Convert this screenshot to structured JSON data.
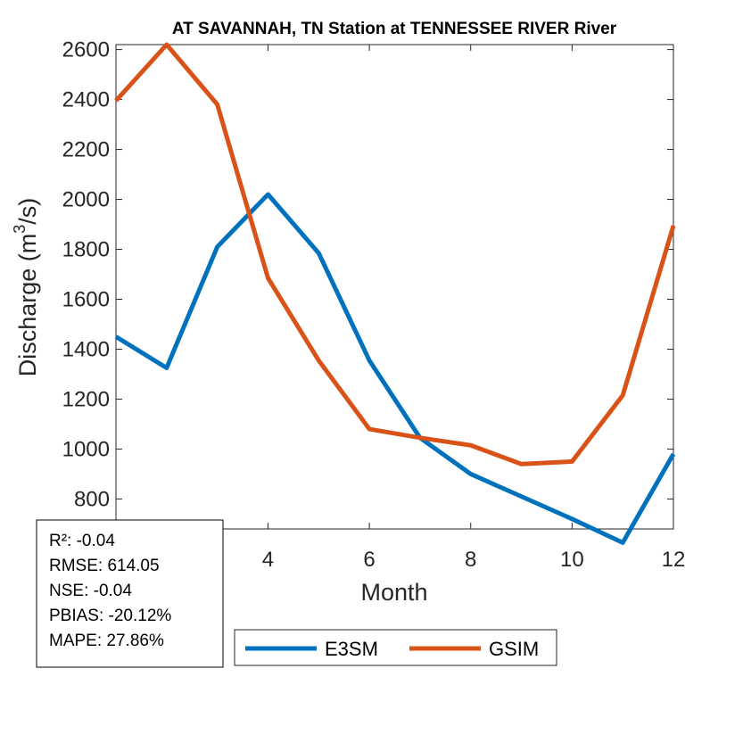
{
  "chart_data": {
    "type": "line",
    "title": "AT SAVANNAH, TN  Station at  TENNESSEE RIVER  River",
    "xlabel": "Month",
    "ylabel": "Discharge (m",
    "ylabel_sup": "3",
    "ylabel_end": "/s)",
    "xlim": [
      1,
      12
    ],
    "ylim": [
      680,
      2620
    ],
    "xticks": [
      4,
      6,
      8,
      10,
      12
    ],
    "yticks": [
      800,
      1000,
      1200,
      1400,
      1600,
      1800,
      2000,
      2200,
      2400,
      2600
    ],
    "x": [
      1,
      2,
      3,
      4,
      5,
      6,
      7,
      8,
      9,
      10,
      11,
      12
    ],
    "series": [
      {
        "name": "E3SM",
        "color": "#0072BD",
        "values": [
          1450,
          1325,
          1810,
          2020,
          1785,
          1355,
          1045,
          900,
          810,
          720,
          625,
          980
        ]
      },
      {
        "name": "GSIM",
        "color": "#D95319",
        "values": [
          2395,
          2620,
          2380,
          1685,
          1355,
          1080,
          1045,
          1015,
          940,
          950,
          1215,
          1895
        ]
      }
    ],
    "stats": {
      "r2": "R²: -0.04",
      "rmse": "RMSE: 614.05",
      "nse": "NSE: -0.04",
      "pbias": "PBIAS: -20.12%",
      "mape": "MAPE: 27.86%"
    },
    "legend_position": "bottom-right",
    "grid": false
  }
}
